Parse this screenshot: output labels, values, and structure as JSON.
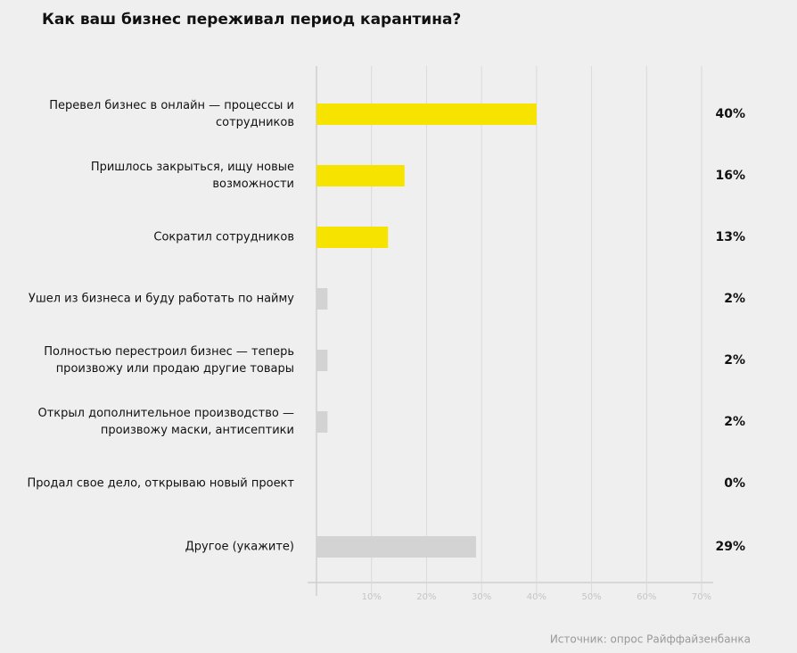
{
  "chart_data": {
    "type": "barh",
    "title": "Как ваш бизнес переживал период карантина?",
    "categories": [
      "Перевел бизнес в онлайн — процессы и сотрудников",
      "Пришлось закрыться, ищу новые возможности",
      "Сократил сотрудников",
      "Ушел из бизнеса и буду работать по найму",
      "Полностью перестроил бизнес — теперь произвожу или продаю другие товары",
      "Открыл дополнительное производство — произвожу маски, антисептики",
      "Продал свое дело, открываю новый проект",
      "Другое (укажите)"
    ],
    "values": [
      40,
      16,
      13,
      2,
      2,
      2,
      0,
      29
    ],
    "value_labels": [
      "40%",
      "16%",
      "13%",
      "2%",
      "2%",
      "2%",
      "0%",
      "29%"
    ],
    "colors": [
      "#f7e300",
      "#f7e300",
      "#f7e300",
      "#d3d3d3",
      "#d3d3d3",
      "#d3d3d3",
      "#d3d3d3",
      "#d3d3d3"
    ],
    "xlim": [
      0,
      70
    ],
    "xticks": [
      {
        "value": 10,
        "label": "10%"
      },
      {
        "value": 20,
        "label": "20%"
      },
      {
        "value": 30,
        "label": "30%"
      },
      {
        "value": 40,
        "label": "40%"
      },
      {
        "value": 50,
        "label": "50%"
      },
      {
        "value": 60,
        "label": "60%"
      },
      {
        "value": 70,
        "label": "70%"
      }
    ],
    "grid": true,
    "source": "Источник: опрос Райффайзенбанка"
  }
}
